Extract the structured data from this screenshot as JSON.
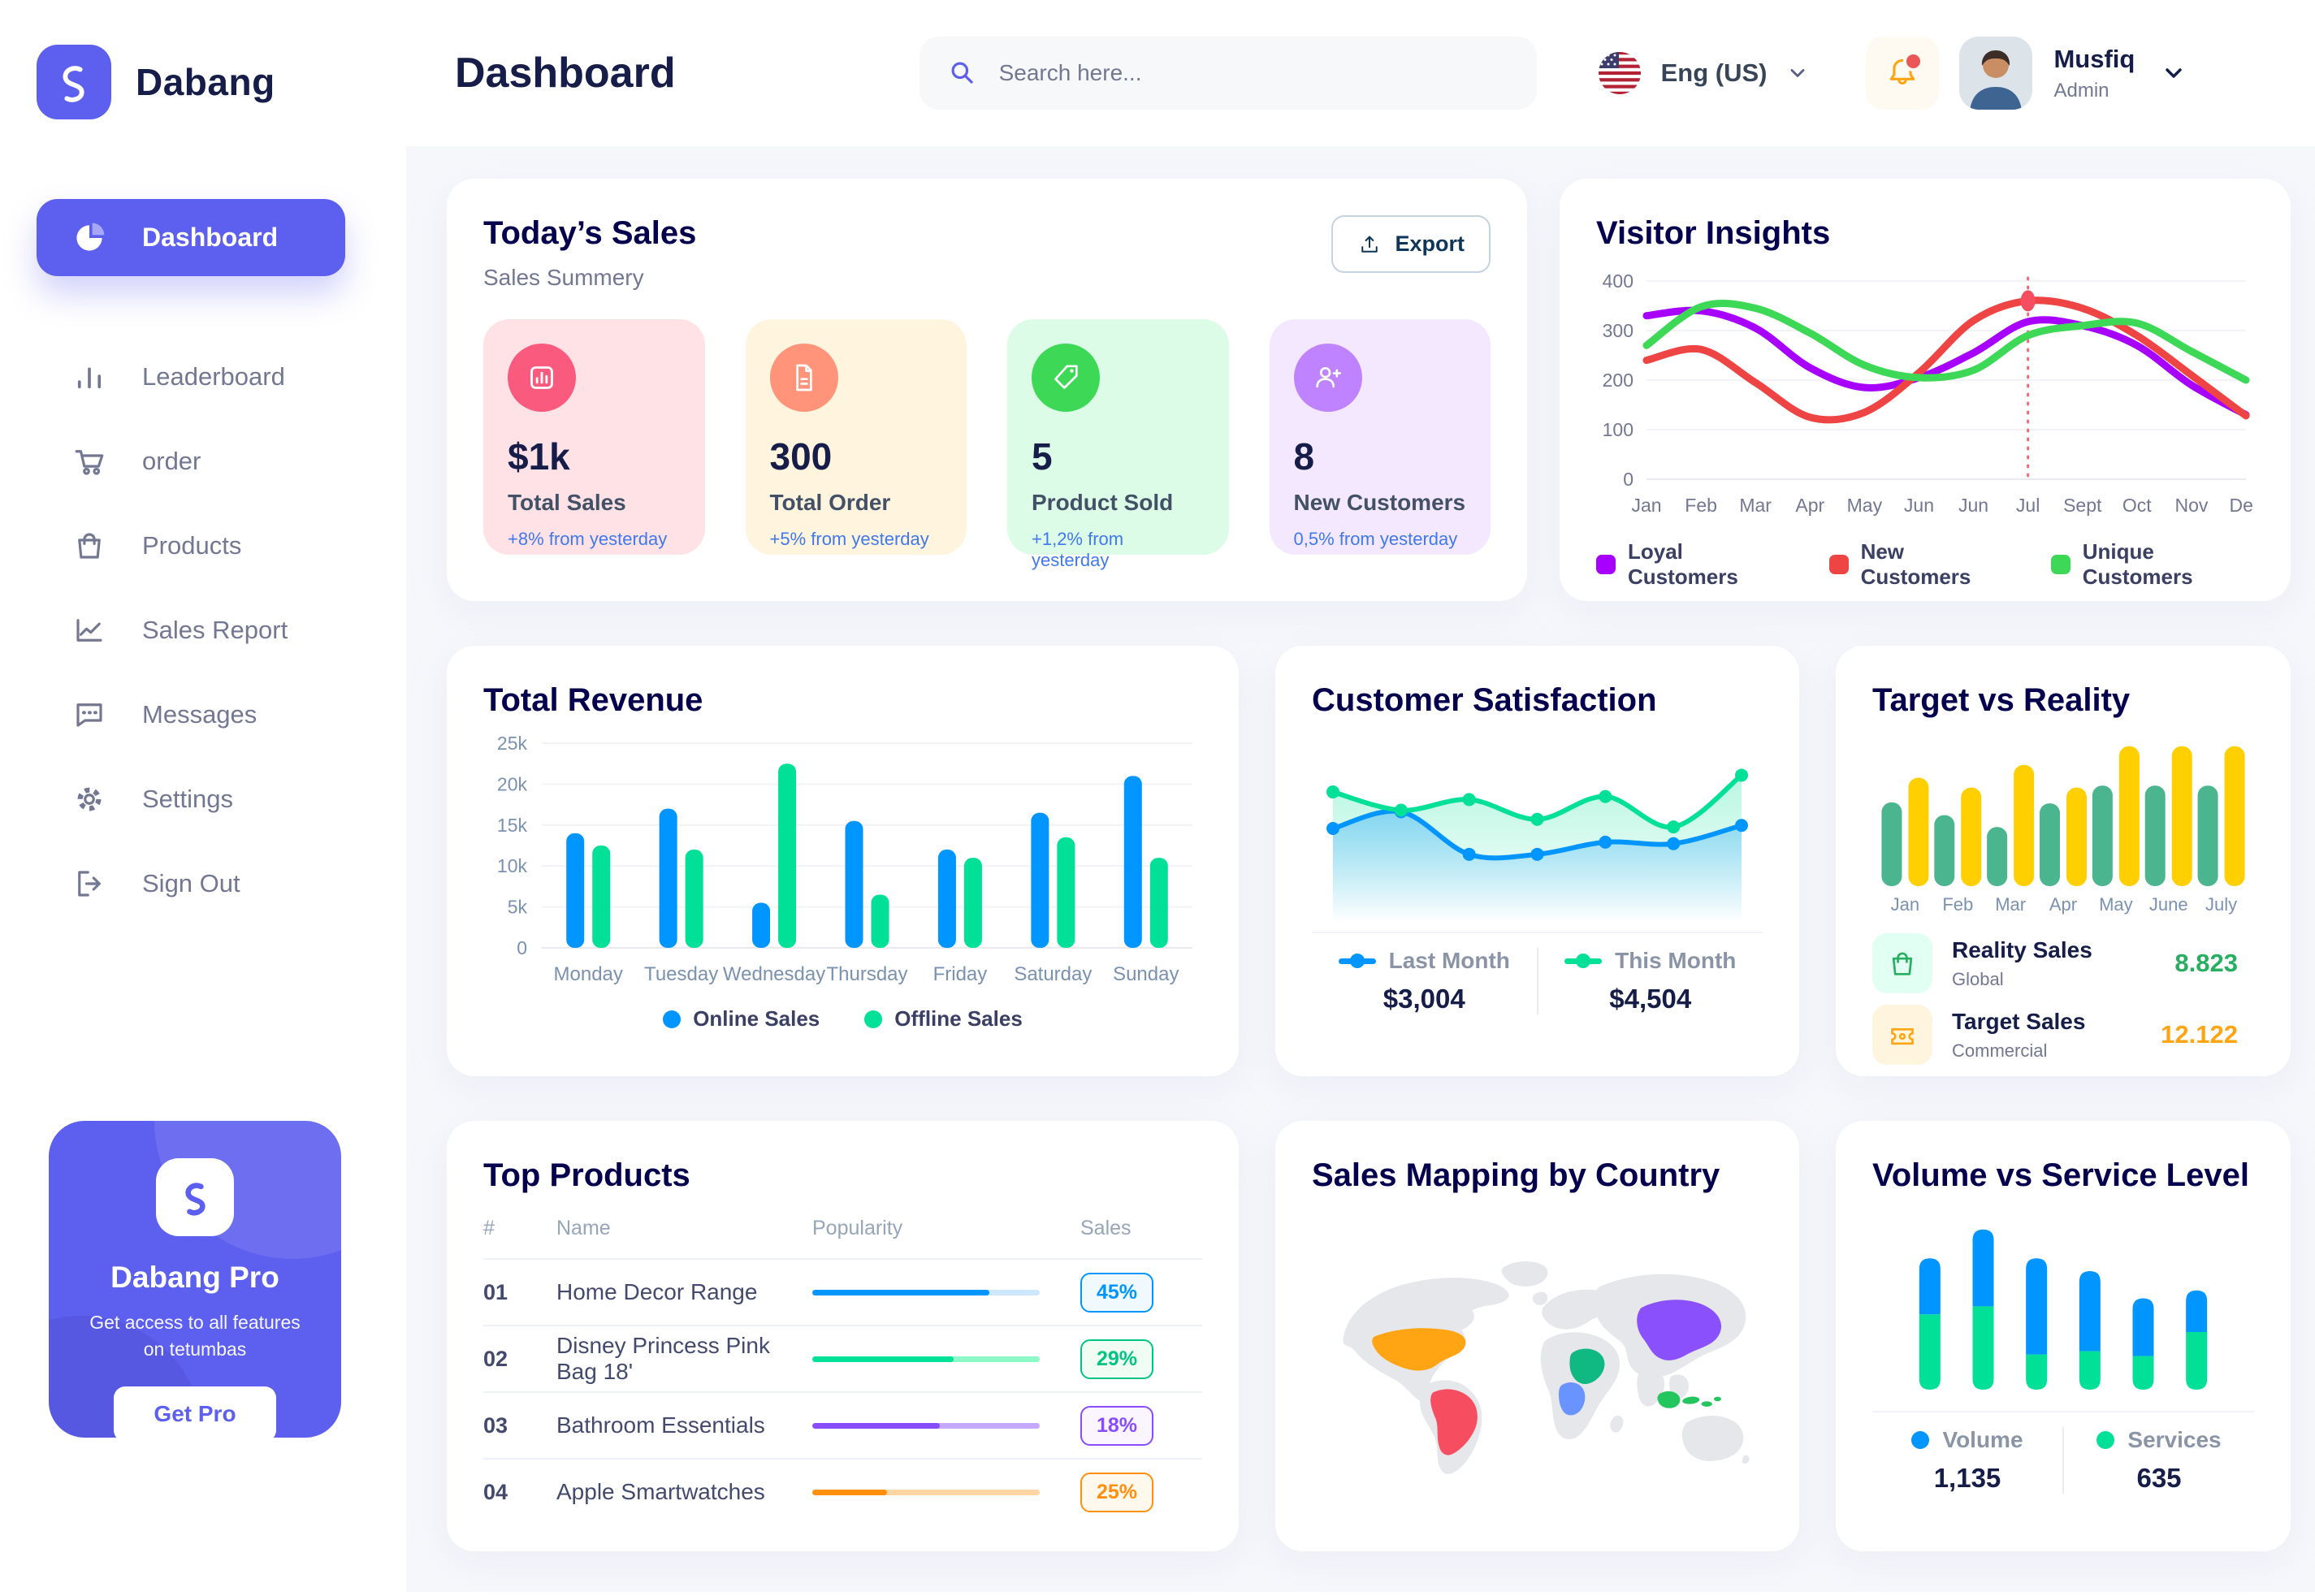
{
  "app": {
    "brand": "Dabang",
    "page_title": "Dashboard"
  },
  "header": {
    "search_placeholder": "Search here...",
    "language_label": "Eng (US)",
    "user": {
      "name": "Musfiq",
      "role": "Admin"
    }
  },
  "sidebar": {
    "items": [
      {
        "label": "Dashboard",
        "icon": "pie",
        "active": true
      },
      {
        "label": "Leaderboard",
        "icon": "bars",
        "active": false
      },
      {
        "label": "order",
        "icon": "cart",
        "active": false
      },
      {
        "label": "Products",
        "icon": "bag",
        "active": false
      },
      {
        "label": "Sales Report",
        "icon": "chart",
        "active": false
      },
      {
        "label": "Messages",
        "icon": "msg",
        "active": false
      },
      {
        "label": "Settings",
        "icon": "gear",
        "active": false
      },
      {
        "label": "Sign Out",
        "icon": "signout",
        "active": false
      }
    ],
    "pro": {
      "title": "Dabang Pro",
      "description": "Get access to all features on tetumbas",
      "cta": "Get Pro"
    }
  },
  "today_sales": {
    "title": "Today’s Sales",
    "subtitle": "Sales Summery",
    "export_label": "Export",
    "cards": [
      {
        "value": "$1k",
        "label": "Total Sales",
        "delta": "+8% from yesterday",
        "bg": "#FFE2E5",
        "icon_bg": "#FA5A7D",
        "icon": "statbar"
      },
      {
        "value": "300",
        "label": "Total Order",
        "delta": "+5% from yesterday",
        "bg": "#FFF4DE",
        "icon_bg": "#FF947A",
        "icon": "statfile"
      },
      {
        "value": "5",
        "label": "Product Sold",
        "delta": "+1,2% from yesterday",
        "bg": "#DCFCE7",
        "icon_bg": "#3CD856",
        "icon": "stattag"
      },
      {
        "value": "8",
        "label": "New Customers",
        "delta": "0,5% from yesterday",
        "bg": "#F3E8FF",
        "icon_bg": "#BF83FF",
        "icon": "statuser"
      }
    ]
  },
  "top_products": {
    "title": "Top Products",
    "headers": [
      "#",
      "Name",
      "Popularity",
      "Sales"
    ],
    "rows": [
      {
        "num": "01",
        "name": "Home Decor Range",
        "progress": 78,
        "bar": "#0095FF",
        "track": "#CDE7FF",
        "sales": "45%",
        "badge_color": "#0095FF",
        "badge_bg": "#F0F9FF"
      },
      {
        "num": "02",
        "name": "Disney Princess Pink Bag 18'",
        "progress": 62,
        "bar": "#00E096",
        "track": "#8CFAC7",
        "sales": "29%",
        "badge_color": "#00C482",
        "badge_bg": "#F0FDF4"
      },
      {
        "num": "03",
        "name": "Bathroom Essentials",
        "progress": 56,
        "bar": "#884DFF",
        "track": "#C5A8FF",
        "sales": "18%",
        "badge_color": "#884DFF",
        "badge_bg": "#FAF5FF"
      },
      {
        "num": "04",
        "name": "Apple Smartwatches",
        "progress": 33,
        "bar": "#FF8F0D",
        "track": "#FFD5A4",
        "sales": "25%",
        "badge_color": "#FF8F0D",
        "badge_bg": "#FFF8EC"
      }
    ]
  },
  "sales_map": {
    "title": "Sales Mapping by Country",
    "land_color": "#E6E7EB",
    "countries": [
      {
        "name": "United States",
        "color": "#FFA412"
      },
      {
        "name": "Brazil",
        "color": "#F64E60"
      },
      {
        "name": "Saudi Arabia",
        "color": "#10B981"
      },
      {
        "name": "Democratic Republic of Congo",
        "color": "#6993FF"
      },
      {
        "name": "China",
        "color": "#8950FC"
      },
      {
        "name": "Indonesia",
        "color": "#22C55E"
      }
    ]
  },
  "chart_data": [
    {
      "id": "visitor_insights",
      "type": "line",
      "title": "Visitor Insights",
      "x": [
        "Jan",
        "Feb",
        "Mar",
        "Apr",
        "May",
        "Jun",
        "Jun",
        "Jul",
        "Sept",
        "Oct",
        "Nov",
        "Des"
      ],
      "ylim": [
        0,
        400
      ],
      "yticks": [
        0,
        100,
        200,
        300,
        400
      ],
      "grid": true,
      "legend_position": "bottom",
      "series": [
        {
          "name": "Loyal Customers",
          "color": "#A700FF",
          "values": [
            330,
            340,
            305,
            225,
            185,
            205,
            255,
            318,
            310,
            270,
            190,
            130
          ]
        },
        {
          "name": "New Customers",
          "color": "#EF4444",
          "values": [
            240,
            262,
            195,
            125,
            135,
            215,
            320,
            360,
            345,
            290,
            210,
            128
          ]
        },
        {
          "name": "Unique Customers",
          "color": "#3CD856",
          "values": [
            270,
            348,
            345,
            295,
            230,
            205,
            220,
            290,
            310,
            315,
            258,
            200
          ]
        }
      ],
      "marker": {
        "series": "New Customers",
        "x_index": 7,
        "value": 360,
        "color": "#F64E60"
      }
    },
    {
      "id": "total_revenue",
      "type": "bar",
      "title": "Total Revenue",
      "categories": [
        "Monday",
        "Tuesday",
        "Wednesday",
        "Thursday",
        "Friday",
        "Saturday",
        "Sunday"
      ],
      "ylim": [
        0,
        25000
      ],
      "yticks": [
        0,
        5000,
        10000,
        15000,
        20000,
        25000
      ],
      "ytick_labels": [
        "0",
        "5k",
        "10k",
        "15k",
        "20k",
        "25k"
      ],
      "grid": true,
      "legend_position": "bottom",
      "series": [
        {
          "name": "Online Sales",
          "color": "#0095FF",
          "values": [
            14000,
            17000,
            5500,
            15500,
            12000,
            16500,
            21000
          ]
        },
        {
          "name": "Offline Sales",
          "color": "#00E096",
          "values": [
            12500,
            12000,
            22500,
            6500,
            11000,
            13500,
            11000
          ]
        }
      ]
    },
    {
      "id": "customer_satisfaction",
      "type": "area",
      "title": "Customer Satisfaction",
      "ylim": [
        0,
        110
      ],
      "grid": false,
      "legend_position": "bottom",
      "series": [
        {
          "name": "Last Month",
          "color": "#0095FF",
          "total": "$3,004",
          "values": [
            55,
            66,
            38,
            38,
            46,
            45,
            57
          ]
        },
        {
          "name": "This Month",
          "color": "#00E096",
          "total": "$4,504",
          "values": [
            79,
            67,
            74,
            61,
            76,
            56,
            90
          ]
        }
      ]
    },
    {
      "id": "target_vs_reality",
      "type": "bar",
      "title": "Target vs Reality",
      "categories": [
        "Jan",
        "Feb",
        "Mar",
        "Apr",
        "May",
        "June",
        "July"
      ],
      "ylim": [
        0,
        15
      ],
      "grid": false,
      "series": [
        {
          "name": "Reality Sales",
          "color": "#4AB58E",
          "values": [
            8.5,
            7.2,
            6.0,
            8.4,
            10.2,
            10.2,
            10.2
          ]
        },
        {
          "name": "Target Sales",
          "color": "#FFCF00",
          "values": [
            11,
            10,
            12.3,
            10,
            14.2,
            14.2,
            14.2
          ]
        }
      ],
      "legend": [
        {
          "name": "Reality Sales",
          "sub": "Global",
          "value": "8.823",
          "value_color": "#27AE60",
          "tile_bg": "#E2FFF3",
          "icon": "bagGreen"
        },
        {
          "name": "Target Sales",
          "sub": "Commercial",
          "value": "12.122",
          "value_color": "#FFA412",
          "tile_bg": "#FFF4DE",
          "icon": "ticket"
        }
      ]
    },
    {
      "id": "volume_service",
      "type": "bar",
      "stacked": true,
      "title": "Volume vs Service Level",
      "ylim": [
        0,
        110
      ],
      "grid": false,
      "legend_position": "bottom",
      "series": [
        {
          "name": "Volume",
          "color": "#0095FF",
          "total": "1,135",
          "values": [
            35,
            48,
            60,
            50,
            36,
            26
          ]
        },
        {
          "name": "Services",
          "color": "#00E096",
          "total": "635",
          "values": [
            47,
            52,
            22,
            24,
            21,
            36
          ]
        }
      ]
    }
  ]
}
